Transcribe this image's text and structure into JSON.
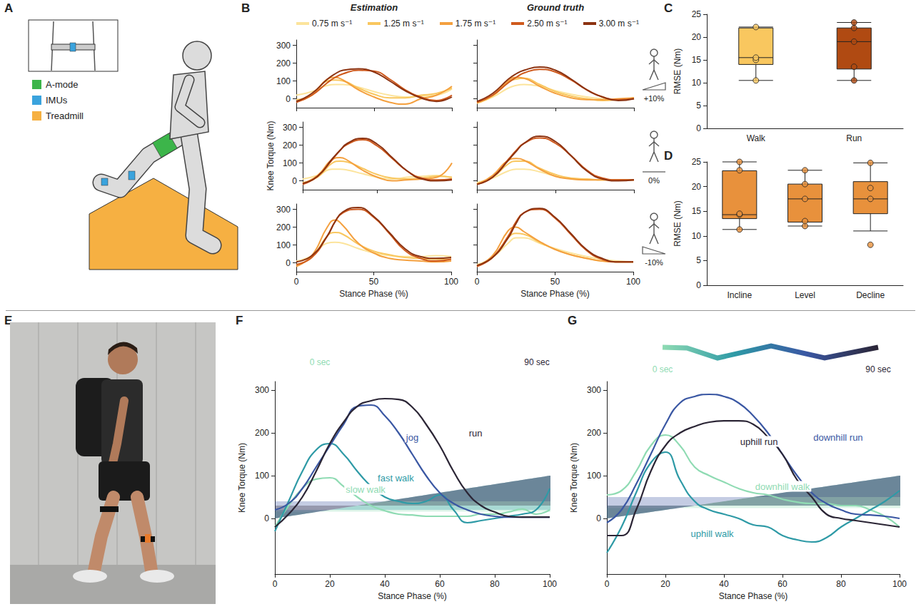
{
  "illustration": {
    "letter": "A",
    "legend": [
      {
        "label": "A-mode",
        "color": "#3cb54a"
      },
      {
        "label": "IMUs",
        "color": "#3aa3dd"
      },
      {
        "label": "Treadmill",
        "color": "#f6b042"
      }
    ]
  },
  "photo": {
    "letter": "E"
  },
  "chart_data": [
    {
      "letter": "B",
      "type": "line",
      "columns": [
        "Estimation",
        "Ground truth"
      ],
      "x": [
        0,
        10,
        20,
        25,
        30,
        40,
        50,
        60,
        70,
        80,
        90,
        100
      ],
      "xlim": [
        0,
        100
      ],
      "xticks": [
        0,
        50,
        100
      ],
      "ylim": [
        -50,
        330
      ],
      "yticks": [
        0,
        100,
        200,
        300
      ],
      "x_label": "Stance Phase (%)",
      "y_label": "Knee Torque (Nm)",
      "legend": "top",
      "series": [
        {
          "name": "0.75 m s⁻¹",
          "color": "#fce49c"
        },
        {
          "name": "1.25 m s⁻¹",
          "color": "#f9c75f"
        },
        {
          "name": "1.75 m s⁻¹",
          "color": "#f4a03f"
        },
        {
          "name": "2.50 m s⁻¹",
          "color": "#cf5a1d"
        },
        {
          "name": "3.00 m s⁻¹",
          "color": "#8c3210"
        }
      ],
      "rows": [
        {
          "slope": "+10%",
          "estimation": [
            [
              20,
              40,
              75,
              80,
              80,
              65,
              40,
              20,
              10,
              15,
              20,
              55
            ],
            [
              -5,
              20,
              100,
              105,
              100,
              60,
              25,
              5,
              5,
              20,
              30,
              60
            ],
            [
              -15,
              20,
              110,
              120,
              105,
              50,
              10,
              -20,
              -30,
              0,
              20,
              70
            ],
            [
              -20,
              20,
              90,
              120,
              140,
              160,
              155,
              110,
              50,
              10,
              -10,
              20
            ],
            [
              -15,
              30,
              110,
              140,
              160,
              168,
              150,
              100,
              45,
              5,
              -15,
              10
            ]
          ],
          "ground_truth": [
            [
              -20,
              10,
              60,
              75,
              80,
              70,
              45,
              25,
              10,
              0,
              -5,
              5
            ],
            [
              -25,
              15,
              95,
              110,
              115,
              80,
              40,
              15,
              0,
              -10,
              -5,
              5
            ],
            [
              -20,
              20,
              100,
              120,
              115,
              70,
              30,
              5,
              -5,
              -5,
              0,
              5
            ],
            [
              -20,
              20,
              90,
              120,
              145,
              165,
              150,
              105,
              50,
              10,
              -5,
              0
            ],
            [
              -15,
              30,
              110,
              140,
              160,
              178,
              160,
              110,
              50,
              10,
              -10,
              0
            ]
          ]
        },
        {
          "slope": "0%",
          "estimation": [
            [
              10,
              30,
              65,
              65,
              60,
              40,
              20,
              10,
              20,
              25,
              30,
              15
            ],
            [
              -10,
              20,
              100,
              110,
              105,
              70,
              35,
              15,
              10,
              15,
              25,
              20
            ],
            [
              -15,
              30,
              120,
              130,
              115,
              60,
              20,
              0,
              5,
              10,
              20,
              100
            ],
            [
              -20,
              25,
              120,
              170,
              205,
              230,
              195,
              125,
              55,
              15,
              5,
              10
            ],
            [
              -15,
              25,
              125,
              170,
              210,
              238,
              205,
              130,
              55,
              10,
              0,
              5
            ]
          ],
          "ground_truth": [
            [
              -10,
              15,
              55,
              65,
              65,
              50,
              25,
              10,
              5,
              5,
              5,
              5
            ],
            [
              -15,
              20,
              95,
              110,
              110,
              70,
              35,
              15,
              10,
              5,
              5,
              5
            ],
            [
              -20,
              30,
              115,
              125,
              115,
              65,
              25,
              10,
              5,
              5,
              5,
              5
            ],
            [
              -20,
              20,
              120,
              170,
              210,
              240,
              210,
              140,
              60,
              15,
              5,
              5
            ],
            [
              -20,
              20,
              115,
              165,
              210,
              250,
              220,
              140,
              55,
              10,
              0,
              5
            ]
          ]
        },
        {
          "slope": "-10%",
          "estimation": [
            [
              10,
              40,
              110,
              115,
              110,
              80,
              55,
              40,
              35,
              35,
              40,
              35
            ],
            [
              -10,
              30,
              150,
              170,
              160,
              105,
              65,
              45,
              30,
              25,
              20,
              20
            ],
            [
              -20,
              40,
              200,
              240,
              210,
              110,
              55,
              25,
              15,
              10,
              5,
              10
            ],
            [
              -10,
              30,
              150,
              230,
              280,
              300,
              255,
              165,
              70,
              25,
              10,
              20
            ],
            [
              5,
              40,
              150,
              230,
              285,
              310,
              260,
              170,
              80,
              35,
              25,
              30
            ]
          ],
          "ground_truth": [
            [
              -10,
              30,
              110,
              140,
              140,
              110,
              80,
              55,
              35,
              20,
              10,
              5
            ],
            [
              -15,
              30,
              140,
              165,
              160,
              115,
              75,
              45,
              25,
              10,
              5,
              5
            ],
            [
              -20,
              40,
              180,
              200,
              175,
              120,
              75,
              45,
              25,
              10,
              5,
              5
            ],
            [
              -20,
              30,
              150,
              230,
              280,
              300,
              250,
              160,
              70,
              20,
              5,
              5
            ],
            [
              -15,
              30,
              140,
              220,
              280,
              305,
              255,
              165,
              75,
              25,
              5,
              5
            ]
          ]
        }
      ]
    },
    {
      "letter": "C",
      "type": "box",
      "categories": [
        "Walk",
        "Run"
      ],
      "colors": [
        "#f9c75f",
        "#b04a12"
      ],
      "boxes": [
        [
          10.5,
          14,
          15.5,
          22,
          22.2
        ],
        [
          10.5,
          13,
          19,
          22,
          23.2
        ]
      ],
      "points": [
        [
          10.5,
          15,
          15.5,
          22.2
        ],
        [
          10.5,
          13.5,
          19,
          22,
          23.2
        ]
      ],
      "ylim": [
        0,
        25
      ],
      "yticks": [
        0,
        5,
        10,
        15,
        20,
        25
      ],
      "y_label": "RMSE (Nm)"
    },
    {
      "letter": "D",
      "type": "box",
      "categories": [
        "Incline",
        "Level",
        "Decline"
      ],
      "colors": [
        "#e8913c",
        "#e8913c",
        "#e8913c"
      ],
      "boxes": [
        [
          11.3,
          13.5,
          14.3,
          23.2,
          25
        ],
        [
          12,
          12.8,
          17.5,
          20.5,
          23.3
        ],
        [
          11,
          14.5,
          17.5,
          21,
          24.8
        ]
      ],
      "points": [
        [
          11.3,
          14.3,
          14.5,
          23.3,
          25
        ],
        [
          12,
          13,
          17.5,
          20.5,
          23.3
        ],
        [
          8.2,
          17.5,
          19.7,
          24.8
        ]
      ],
      "ylim": [
        0,
        25
      ],
      "yticks": [
        0,
        5,
        10,
        15,
        20,
        25
      ],
      "y_label": "RMSE (Nm)"
    },
    {
      "letter": "F",
      "type": "line",
      "timeline": {
        "start": "0 sec",
        "end": "90 sec"
      },
      "x": [
        0,
        5,
        10,
        15,
        20,
        25,
        30,
        35,
        40,
        45,
        50,
        55,
        60,
        65,
        70,
        75,
        80,
        85,
        90,
        95,
        100
      ],
      "xlim": [
        0,
        100
      ],
      "xticks": [
        0,
        20,
        40,
        60,
        80,
        100
      ],
      "ylim": [
        -130,
        320
      ],
      "yticks": [
        0,
        100,
        200,
        300
      ],
      "x_label": "Stance Phase (%)",
      "y_label": "Knee Torque (Nm)",
      "series": [
        {
          "name": "slow walk",
          "color": "#8fdbb3",
          "sd": 8,
          "values": [
            -20,
            30,
            70,
            92,
            95,
            75,
            50,
            30,
            18,
            10,
            8,
            5,
            5,
            5,
            5,
            10,
            10,
            15,
            22,
            10,
            20
          ]
        },
        {
          "name": "fast walk",
          "color": "#2e9aa6",
          "sd": 10,
          "values": [
            -30,
            40,
            110,
            160,
            175,
            150,
            110,
            75,
            50,
            40,
            35,
            40,
            55,
            20,
            -10,
            -5,
            0,
            5,
            10,
            20,
            70
          ]
        },
        {
          "name": "jog",
          "color": "#3a57a3",
          "sd": 20,
          "values": [
            20,
            35,
            70,
            120,
            170,
            220,
            262,
            265,
            240,
            200,
            150,
            100,
            60,
            35,
            20,
            10,
            5,
            3,
            3,
            3,
            3
          ]
        },
        {
          "name": "run",
          "color": "#2b2535",
          "sd": 15,
          "values": [
            -20,
            10,
            50,
            110,
            175,
            225,
            262,
            275,
            280,
            278,
            260,
            220,
            170,
            110,
            60,
            30,
            15,
            5,
            3,
            3,
            3
          ]
        }
      ]
    },
    {
      "letter": "G",
      "type": "line",
      "timeline": {
        "start": "0 sec",
        "end": "90 sec"
      },
      "x": [
        0,
        5,
        10,
        15,
        20,
        25,
        30,
        35,
        40,
        45,
        50,
        55,
        60,
        65,
        70,
        75,
        80,
        85,
        90,
        95,
        100
      ],
      "xlim": [
        0,
        100
      ],
      "xticks": [
        0,
        20,
        40,
        60,
        80,
        100
      ],
      "ylim": [
        -130,
        320
      ],
      "yticks": [
        0,
        100,
        200,
        300
      ],
      "x_label": "Stance Phase (%)",
      "y_label": "Knee Torque (Nm)",
      "series": [
        {
          "name": "downhill walk",
          "color": "#8fdbb3",
          "sd": 12,
          "values": [
            55,
            65,
            110,
            170,
            195,
            170,
            120,
            100,
            85,
            70,
            60,
            55,
            45,
            38,
            35,
            35,
            30,
            30,
            20,
            5,
            -20
          ]
        },
        {
          "name": "uphill walk",
          "color": "#2e9aa6",
          "sd": 15,
          "values": [
            -80,
            -20,
            60,
            130,
            155,
            90,
            40,
            20,
            10,
            0,
            -15,
            -20,
            -40,
            -50,
            -55,
            -45,
            -20,
            0,
            20,
            40,
            65
          ]
        },
        {
          "name": "downhill run",
          "color": "#3a57a3",
          "sd": 25,
          "values": [
            -10,
            20,
            80,
            150,
            220,
            270,
            285,
            290,
            285,
            270,
            240,
            200,
            150,
            100,
            60,
            35,
            20,
            10,
            8,
            5,
            0
          ]
        },
        {
          "name": "uphill run",
          "color": "#2b2535",
          "sd": 15,
          "values": [
            -40,
            -40,
            20,
            110,
            170,
            200,
            215,
            225,
            228,
            228,
            220,
            190,
            150,
            90,
            50,
            10,
            0,
            -5,
            -10,
            -15,
            -20
          ]
        }
      ]
    }
  ]
}
